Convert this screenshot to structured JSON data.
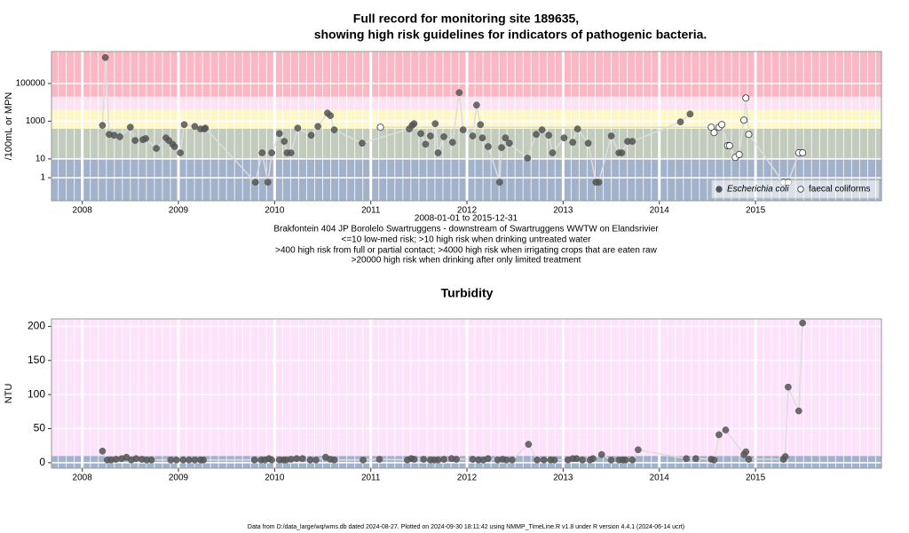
{
  "footer": "Data from D:/data_large/wq/wms.db dated 2024-08-27. Plotted on 2024-09-30 18:11:42 using NMMP_TimeLine.R v1.8 under R version 4.4.1 (2024-06-14 ucrt)",
  "chart_data": [
    {
      "type": "scatter",
      "title": [
        "Full record for monitoring site 189635,",
        "showing high risk guidelines for indicators of pathogenic bacteria."
      ],
      "ylabel": "/100mL or MPN",
      "caption_lines": [
        "2008-01-01 to 2015-12-31",
        "Brakfontein 404 JP Borolelo Swartruggens - downstream of Swartruggens WWTW on Elandsrivier",
        "<=10 low-med risk; >10 high risk when drinking untreated water",
        ">400 high risk from full or partial contact; >4000 high risk when irrigating crops that are eaten raw",
        ">20000 high risk when drinking after only limited treatment"
      ],
      "log_scale": true,
      "xlim": [
        2007.68,
        2016.31
      ],
      "xticks": [
        2008,
        2009,
        2010,
        2011,
        2012,
        2013,
        2014,
        2015
      ],
      "ylim": [
        0.06,
        5000000
      ],
      "yticks": [
        1,
        10,
        1000,
        100000
      ],
      "thresholds": [
        10,
        400,
        4000,
        20000
      ],
      "band_colors": [
        "#a3b2cb",
        "#c3cbbd",
        "#fdf7c9",
        "#fbe3f3",
        "#f9b8c4"
      ],
      "grid": true,
      "legend": "bottom right",
      "series": [
        {
          "name": "Escherichia coli",
          "color": "#555555",
          "marker": "filled",
          "x": [
            2008.21,
            2008.24,
            2008.28,
            2008.33,
            2008.39,
            2008.5,
            2008.55,
            2008.63,
            2008.66,
            2008.77,
            2008.87,
            2008.9,
            2008.94,
            2008.96,
            2009.02,
            2009.06,
            2009.17,
            2009.23,
            2009.27,
            2009.28,
            2009.8,
            2009.87,
            2009.93,
            2009.97,
            2010.05,
            2010.1,
            2010.13,
            2010.17,
            2010.24,
            2010.38,
            2010.45,
            2010.55,
            2010.58,
            2010.62,
            2010.91,
            2011.4,
            2011.43,
            2011.45,
            2011.52,
            2011.57,
            2011.62,
            2011.67,
            2011.7,
            2011.76,
            2011.85,
            2011.92,
            2011.96,
            2012.06,
            2012.1,
            2012.14,
            2012.16,
            2012.22,
            2012.34,
            2012.36,
            2012.4,
            2012.44,
            2012.63,
            2012.72,
            2012.78,
            2012.85,
            2012.89,
            2013.01,
            2013.1,
            2013.15,
            2013.26,
            2013.34,
            2013.37,
            2013.5,
            2013.58,
            2013.61,
            2013.67,
            2013.72,
            2014.22,
            2014.32
          ],
          "values": [
            600,
            2400000,
            200,
            180,
            150,
            480,
            95,
            105,
            120,
            36,
            130,
            95,
            60,
            45,
            21,
            660,
            530,
            390,
            390,
            430,
            0.58,
            21,
            0.58,
            21,
            220,
            85,
            21,
            21,
            430,
            180,
            530,
            2700,
            2000,
            350,
            68,
            390,
            600,
            740,
            220,
            60,
            165,
            740,
            21,
            150,
            76,
            33000,
            350,
            165,
            7200,
            660,
            130,
            45,
            0.58,
            40,
            130,
            68,
            11,
            200,
            350,
            180,
            21,
            130,
            76,
            390,
            68,
            0.58,
            0.58,
            165,
            21,
            21,
            85,
            85,
            920,
            2400
          ]
        },
        {
          "name": "faecal coliforms",
          "color": "#333333",
          "marker": "open",
          "x": [
            2011.1,
            2014.54,
            2014.57,
            2014.62,
            2014.65,
            2014.71,
            2014.73,
            2014.79,
            2014.83,
            2014.88,
            2014.9,
            2014.93,
            2015.29,
            2015.34,
            2015.45,
            2015.49
          ],
          "values": [
            480,
            480,
            250,
            480,
            660,
            50,
            50,
            12,
            17,
            1140,
            17000,
            200,
            0.58,
            0.58,
            21,
            21
          ]
        }
      ]
    },
    {
      "type": "scatter",
      "title": "Turbidity",
      "ylabel": "NTU",
      "log_scale": false,
      "xlim": [
        2007.68,
        2016.31
      ],
      "xticks": [
        2008,
        2009,
        2010,
        2011,
        2012,
        2013,
        2014,
        2015
      ],
      "ylim": [
        -8,
        211
      ],
      "yticks": [
        0,
        50,
        100,
        150,
        200
      ],
      "thresholds": [
        10
      ],
      "band_colors": [
        "#a3b2cb",
        "#fde2fb"
      ],
      "grid": true,
      "series": [
        {
          "name": "Turbidity",
          "color": "#555555",
          "marker": "filled",
          "x": [
            2008.21,
            2008.26,
            2008.3,
            2008.35,
            2008.41,
            2008.46,
            2008.51,
            2008.56,
            2008.62,
            2008.67,
            2008.72,
            2008.92,
            2008.98,
            2009.05,
            2009.11,
            2009.17,
            2009.23,
            2009.26,
            2009.79,
            2009.86,
            2009.9,
            2009.94,
            2009.97,
            2010.05,
            2010.09,
            2010.12,
            2010.17,
            2010.23,
            2010.29,
            2010.37,
            2010.43,
            2010.53,
            2010.58,
            2010.62,
            2010.92,
            2011.09,
            2011.38,
            2011.42,
            2011.45,
            2011.55,
            2011.62,
            2011.66,
            2011.7,
            2011.76,
            2011.84,
            2011.89,
            2012.06,
            2012.12,
            2012.17,
            2012.22,
            2012.32,
            2012.37,
            2012.41,
            2012.47,
            2012.64,
            2012.73,
            2012.8,
            2012.87,
            2012.91,
            2013.05,
            2013.1,
            2013.14,
            2013.2,
            2013.28,
            2013.31,
            2013.4,
            2013.5,
            2013.58,
            2013.62,
            2013.65,
            2013.72,
            2013.78,
            2014.28,
            2014.38,
            2014.54,
            2014.57,
            2014.62,
            2014.69,
            2014.88,
            2014.9,
            2014.93,
            2015.29,
            2015.31,
            2015.34,
            2015.45,
            2015.49
          ],
          "values": [
            17,
            4,
            4,
            5,
            6,
            8,
            4,
            6,
            5,
            4,
            4,
            4,
            4,
            4,
            4,
            4,
            4,
            4,
            4,
            4,
            4,
            6,
            4,
            4,
            4,
            4,
            5,
            6,
            6,
            4,
            4,
            8,
            5,
            4,
            4,
            5,
            4,
            6,
            5,
            5,
            4,
            4,
            4,
            5,
            6,
            5,
            5,
            4,
            4,
            6,
            4,
            5,
            4,
            4,
            27,
            4,
            4,
            4,
            4,
            4,
            6,
            6,
            4,
            4,
            6,
            12,
            4,
            4,
            4,
            4,
            4,
            19,
            6,
            6,
            5,
            4,
            41,
            48,
            12,
            16,
            5,
            5,
            9,
            111,
            76,
            205
          ]
        }
      ]
    }
  ]
}
